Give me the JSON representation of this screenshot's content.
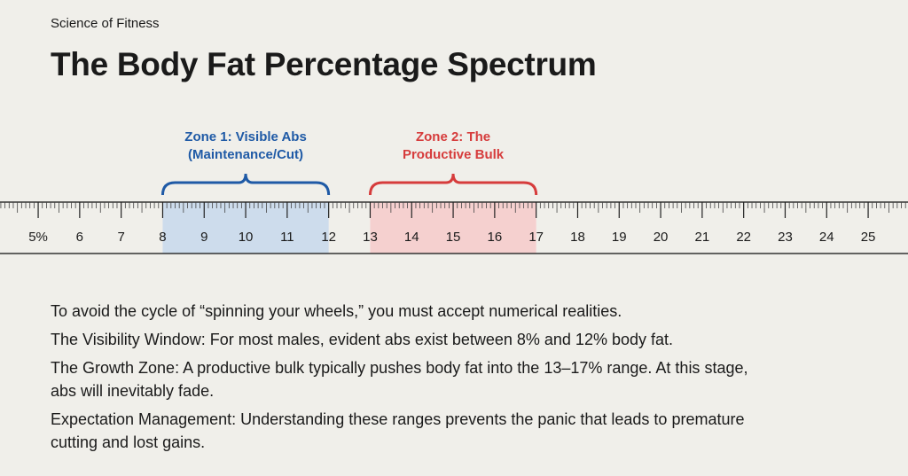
{
  "header": {
    "kicker": "Science of Fitness",
    "title": "The Body Fat Percentage Spectrum"
  },
  "scale": {
    "lim": [
      4.08,
      25.96
    ],
    "ticks": [
      {
        "value": 5,
        "label": "5%"
      },
      6,
      7,
      8,
      9,
      10,
      11,
      12,
      13,
      14,
      15,
      16,
      17,
      18,
      19,
      20,
      21,
      22,
      23,
      24,
      25
    ],
    "zones": [
      {
        "label": [
          "Zone 1: Visible Abs",
          "(Maintenance/Cut)"
        ],
        "from": 8,
        "to": 12,
        "color": "#1f5aa6",
        "fill": "#cddcec"
      },
      {
        "label": [
          "Zone 2: The",
          "Productive Bulk"
        ],
        "from": 13,
        "to": 17,
        "color": "#d63c3c",
        "fill": "#f5d0cf"
      }
    ]
  },
  "body": {
    "paragraphs": [
      "To avoid the cycle of “spinning your wheels,” you must accept numerical realities.",
      "The Visibility Window: For most males, evident abs exist between 8% and 12% body fat.",
      "The Growth Zone: A productive bulk typically pushes body fat into the 13–17% range. At this stage, abs will inevitably fade.",
      "Expectation Management: Understanding these ranges prevents the panic that leads to premature cutting and lost gains."
    ]
  }
}
